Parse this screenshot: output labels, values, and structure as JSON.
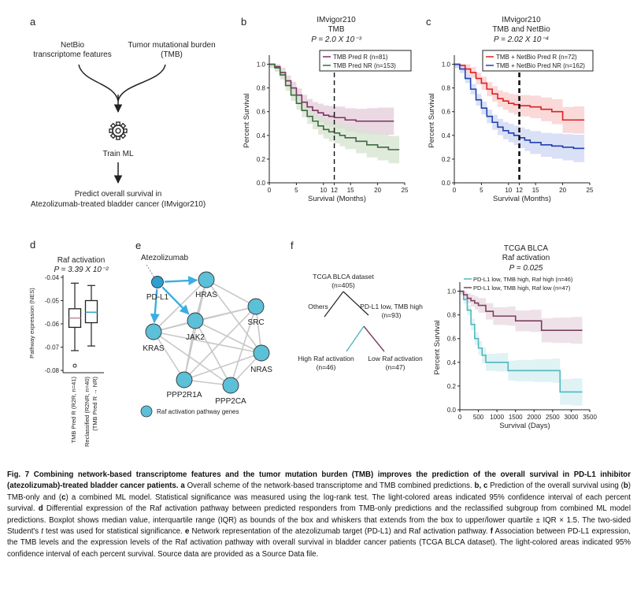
{
  "panel_labels": {
    "a": "a",
    "b": "b",
    "c": "c",
    "d": "d",
    "e": "e",
    "f": "f"
  },
  "panel_a": {
    "input_left_line1": "NetBio",
    "input_left_line2": "transcriptome features",
    "input_right_line1": "Tumor mutational burden",
    "input_right_line2": "(TMB)",
    "train_label": "Train ML",
    "predict_line1": "Predict overall survival in",
    "predict_line2": "Atezolizumab-treated bladder cancer (IMvigor210)"
  },
  "panel_b": {
    "title1": "IMvigor210",
    "title2": "TMB",
    "pvalue": "P = 2.0 X 10⁻³",
    "legend": [
      "TMB Pred R (n=81)",
      "TMB Pred NR (n=153)"
    ],
    "colors": [
      "#7b3560",
      "#3d6a3f"
    ],
    "band_colors": [
      "#e3ccd9",
      "#d6e3cf"
    ]
  },
  "panel_c": {
    "title1": "IMvigor210",
    "title2": "TMB and NetBio",
    "pvalue": "P = 2.02 X 10⁻⁴",
    "legend": [
      "TMB + NetBio Pred R (n=72)",
      "TMB + NetBio Pred NR (n=162)"
    ],
    "colors": [
      "#e02020",
      "#2040b0"
    ],
    "band_colors": [
      "#f8cccc",
      "#cdd6f2"
    ]
  },
  "km_axes": {
    "ylabel": "Percent Survival",
    "xlabel": "Survival (Months)",
    "yticks": [
      "0.0",
      "0.2",
      "0.4",
      "0.6",
      "0.8",
      "1.0"
    ],
    "xticks": [
      "0",
      "5",
      "10",
      "12",
      "15",
      "20",
      "25"
    ]
  },
  "panel_d": {
    "title": "Raf activation",
    "pvalue": "P = 3.39 X 10⁻²",
    "ylabel": "Pathway expression (NES)",
    "yticks": [
      "-0.04",
      "-0.05",
      "-0.06",
      "-0.07",
      "-0.08"
    ],
    "group1": "TMB Pred R (R2R, n=41)",
    "group2_line1": "Reclassified (R2NR, n=40)",
    "group2_line2": "(TMB Pred R → NR)"
  },
  "panel_e": {
    "drug": "Atezolizumab",
    "nodes": [
      "PD-L1",
      "HRAS",
      "KRAS",
      "JAK2",
      "SRC",
      "NRAS",
      "PPP2R1A",
      "PPP2CA"
    ],
    "legend": "Raf activation pathway genes",
    "node_color": "#5bc0d8",
    "pdl1_color": "#2e9fd0",
    "arrow_color": "#3aaee0"
  },
  "panel_f_tree": {
    "root_line1": "TCGA BLCA dataset",
    "root_line2": "(n=405)",
    "others": "Others",
    "mid_line1": "PD-L1 low, TMB high",
    "mid_line2": "(n=93)",
    "high_line1": "High Raf activation",
    "high_line2": "(n=46)",
    "low_line1": "Low Raf activation",
    "low_line2": "(n=47)"
  },
  "panel_f": {
    "title1": "TCGA BLCA",
    "title2": "Raf activation",
    "pvalue": "P = 0.025",
    "legend": [
      "PD-L1 low, TMB high, Raf high (n=46)",
      "PD-L1 low, TMB high, Raf low (n=47)"
    ],
    "colors": [
      "#4fb8c0",
      "#7b4060"
    ],
    "band_colors": [
      "#d4eef0",
      "#e8d8e0"
    ],
    "ylabel": "Percent Survival",
    "xlabel": "Survival (Days)",
    "yticks": [
      "0.0",
      "0.2",
      "0.4",
      "0.6",
      "0.8",
      "1.0"
    ],
    "xticks": [
      "0",
      "500",
      "1000",
      "1500",
      "2000",
      "2500",
      "3000",
      "3500"
    ]
  },
  "caption": {
    "lead": "Fig. 7 Combining network-based transcriptome features and the tumor mutation burden (TMB) improves the prediction of the overall survival in PD-L1 inhibitor (atezolizumab)-treated bladder cancer patients.",
    "a_label": "a",
    "a_text": " Overall scheme of the network-based transcriptome and TMB combined predictions. ",
    "bc_label": "b, c",
    "bc_text1": " Prediction of the overall survival using (",
    "bc_b": "b",
    "bc_text2": ") TMB-only and (",
    "bc_c": "c",
    "bc_text3": ") a combined ML model. Statistical significance was measured using the log-rank test. The light-colored areas indicated 95% confidence interval of each percent survival. ",
    "d_label": "d",
    "d_text1": " Differential expression of the Raf activation pathway between predicted responders from TMB-only predictions and the reclassified subgroup from combined ML model predictions. Boxplot shows median value, interquartile range (IQR) as bounds of the box and whiskers that extends from the box to upper/lower quartile ± IQR × 1.5. The two-sided Student's ",
    "d_t": "t",
    "d_text2": " test was used for statistical significance. ",
    "e_label": "e",
    "e_text": " Network representation of the atezolizumab target (PD-L1) and Raf activation pathway. ",
    "f_label": "f",
    "f_text": " Association between PD-L1 expression, the TMB levels and the expression levels of the Raf activation pathway with overall survival in bladder cancer patients (TCGA BLCA dataset). The light-colored areas indicated 95% confidence interval of each percent survival. Source data are provided as a Source Data file."
  },
  "chart_data": [
    {
      "type": "line",
      "title": "IMvigor210 TMB",
      "xlabel": "Survival (Months)",
      "ylabel": "Percent Survival",
      "xlim": [
        0,
        25
      ],
      "ylim": [
        0,
        1.05
      ],
      "cutoff_x": 12,
      "series": [
        {
          "name": "TMB Pred R (n=81)",
          "x": [
            0,
            1,
            2,
            3,
            4,
            5,
            6,
            7,
            8,
            9,
            10,
            11,
            12,
            14,
            16,
            18,
            20,
            23
          ],
          "y": [
            1.0,
            0.98,
            0.93,
            0.86,
            0.8,
            0.74,
            0.68,
            0.64,
            0.61,
            0.59,
            0.57,
            0.56,
            0.55,
            0.53,
            0.52,
            0.52,
            0.52,
            0.52
          ]
        },
        {
          "name": "TMB Pred NR (n=153)",
          "x": [
            0,
            1,
            2,
            3,
            4,
            5,
            6,
            7,
            8,
            9,
            10,
            11,
            12,
            13,
            14,
            16,
            18,
            20,
            22,
            24
          ],
          "y": [
            1.0,
            0.97,
            0.91,
            0.82,
            0.74,
            0.67,
            0.61,
            0.56,
            0.52,
            0.48,
            0.45,
            0.43,
            0.42,
            0.4,
            0.38,
            0.35,
            0.32,
            0.3,
            0.28,
            0.28
          ]
        }
      ]
    },
    {
      "type": "line",
      "title": "IMvigor210 TMB and NetBio",
      "xlabel": "Survival (Months)",
      "ylabel": "Percent Survival",
      "xlim": [
        0,
        25
      ],
      "ylim": [
        0,
        1.05
      ],
      "cutoff_x": 12,
      "series": [
        {
          "name": "TMB + NetBio Pred R (n=72)",
          "x": [
            0,
            1,
            2,
            3,
            4,
            5,
            6,
            7,
            8,
            9,
            10,
            11,
            12,
            14,
            16,
            18,
            20,
            22,
            24
          ],
          "y": [
            1.0,
            0.99,
            0.96,
            0.93,
            0.88,
            0.84,
            0.79,
            0.75,
            0.71,
            0.69,
            0.67,
            0.66,
            0.65,
            0.64,
            0.62,
            0.6,
            0.53,
            0.53,
            0.53
          ]
        },
        {
          "name": "TMB + NetBio Pred NR (n=162)",
          "x": [
            0,
            1,
            2,
            3,
            4,
            5,
            6,
            7,
            8,
            9,
            10,
            11,
            12,
            13,
            14,
            16,
            18,
            20,
            22,
            24
          ],
          "y": [
            1.0,
            0.96,
            0.88,
            0.79,
            0.7,
            0.63,
            0.56,
            0.51,
            0.47,
            0.44,
            0.42,
            0.4,
            0.38,
            0.36,
            0.34,
            0.32,
            0.31,
            0.3,
            0.29,
            0.29
          ]
        }
      ]
    },
    {
      "type": "box",
      "title": "Raf activation",
      "ylabel": "Pathway expression (NES)",
      "ylim": [
        -0.081,
        -0.039
      ],
      "groups": [
        {
          "name": "TMB Pred R (R2R, n=41)",
          "whisker_low": -0.0715,
          "q1": -0.0615,
          "median": -0.0575,
          "q3": -0.0535,
          "whisker_high": -0.0425,
          "outliers": [
            -0.078
          ]
        },
        {
          "name": "Reclassified (R2NR, n=40) (TMB Pred R → NR)",
          "whisker_low": -0.0695,
          "q1": -0.0595,
          "median": -0.055,
          "q3": -0.05,
          "whisker_high": -0.0435,
          "outliers": []
        }
      ]
    },
    {
      "type": "line",
      "title": "TCGA BLCA Raf activation",
      "xlabel": "Survival (Days)",
      "ylabel": "Percent Survival",
      "xlim": [
        0,
        3500
      ],
      "ylim": [
        0,
        1.05
      ],
      "series": [
        {
          "name": "PD-L1 low, TMB high, Raf high (n=46)",
          "x": [
            0,
            100,
            200,
            300,
            400,
            500,
            600,
            700,
            1000,
            1300,
            1500,
            2000,
            2500,
            2700,
            3000,
            3300
          ],
          "y": [
            1.0,
            0.93,
            0.84,
            0.72,
            0.6,
            0.52,
            0.46,
            0.4,
            0.4,
            0.33,
            0.33,
            0.33,
            0.33,
            0.15,
            0.15,
            0.15
          ]
        },
        {
          "name": "PD-L1 low, TMB high, Raf low (n=47)",
          "x": [
            0,
            100,
            200,
            300,
            400,
            500,
            700,
            900,
            1300,
            1500,
            1900,
            2200,
            2500,
            3000,
            3300
          ],
          "y": [
            1.0,
            0.97,
            0.94,
            0.92,
            0.9,
            0.88,
            0.83,
            0.79,
            0.79,
            0.75,
            0.75,
            0.67,
            0.67,
            0.67,
            0.67
          ]
        }
      ]
    }
  ]
}
